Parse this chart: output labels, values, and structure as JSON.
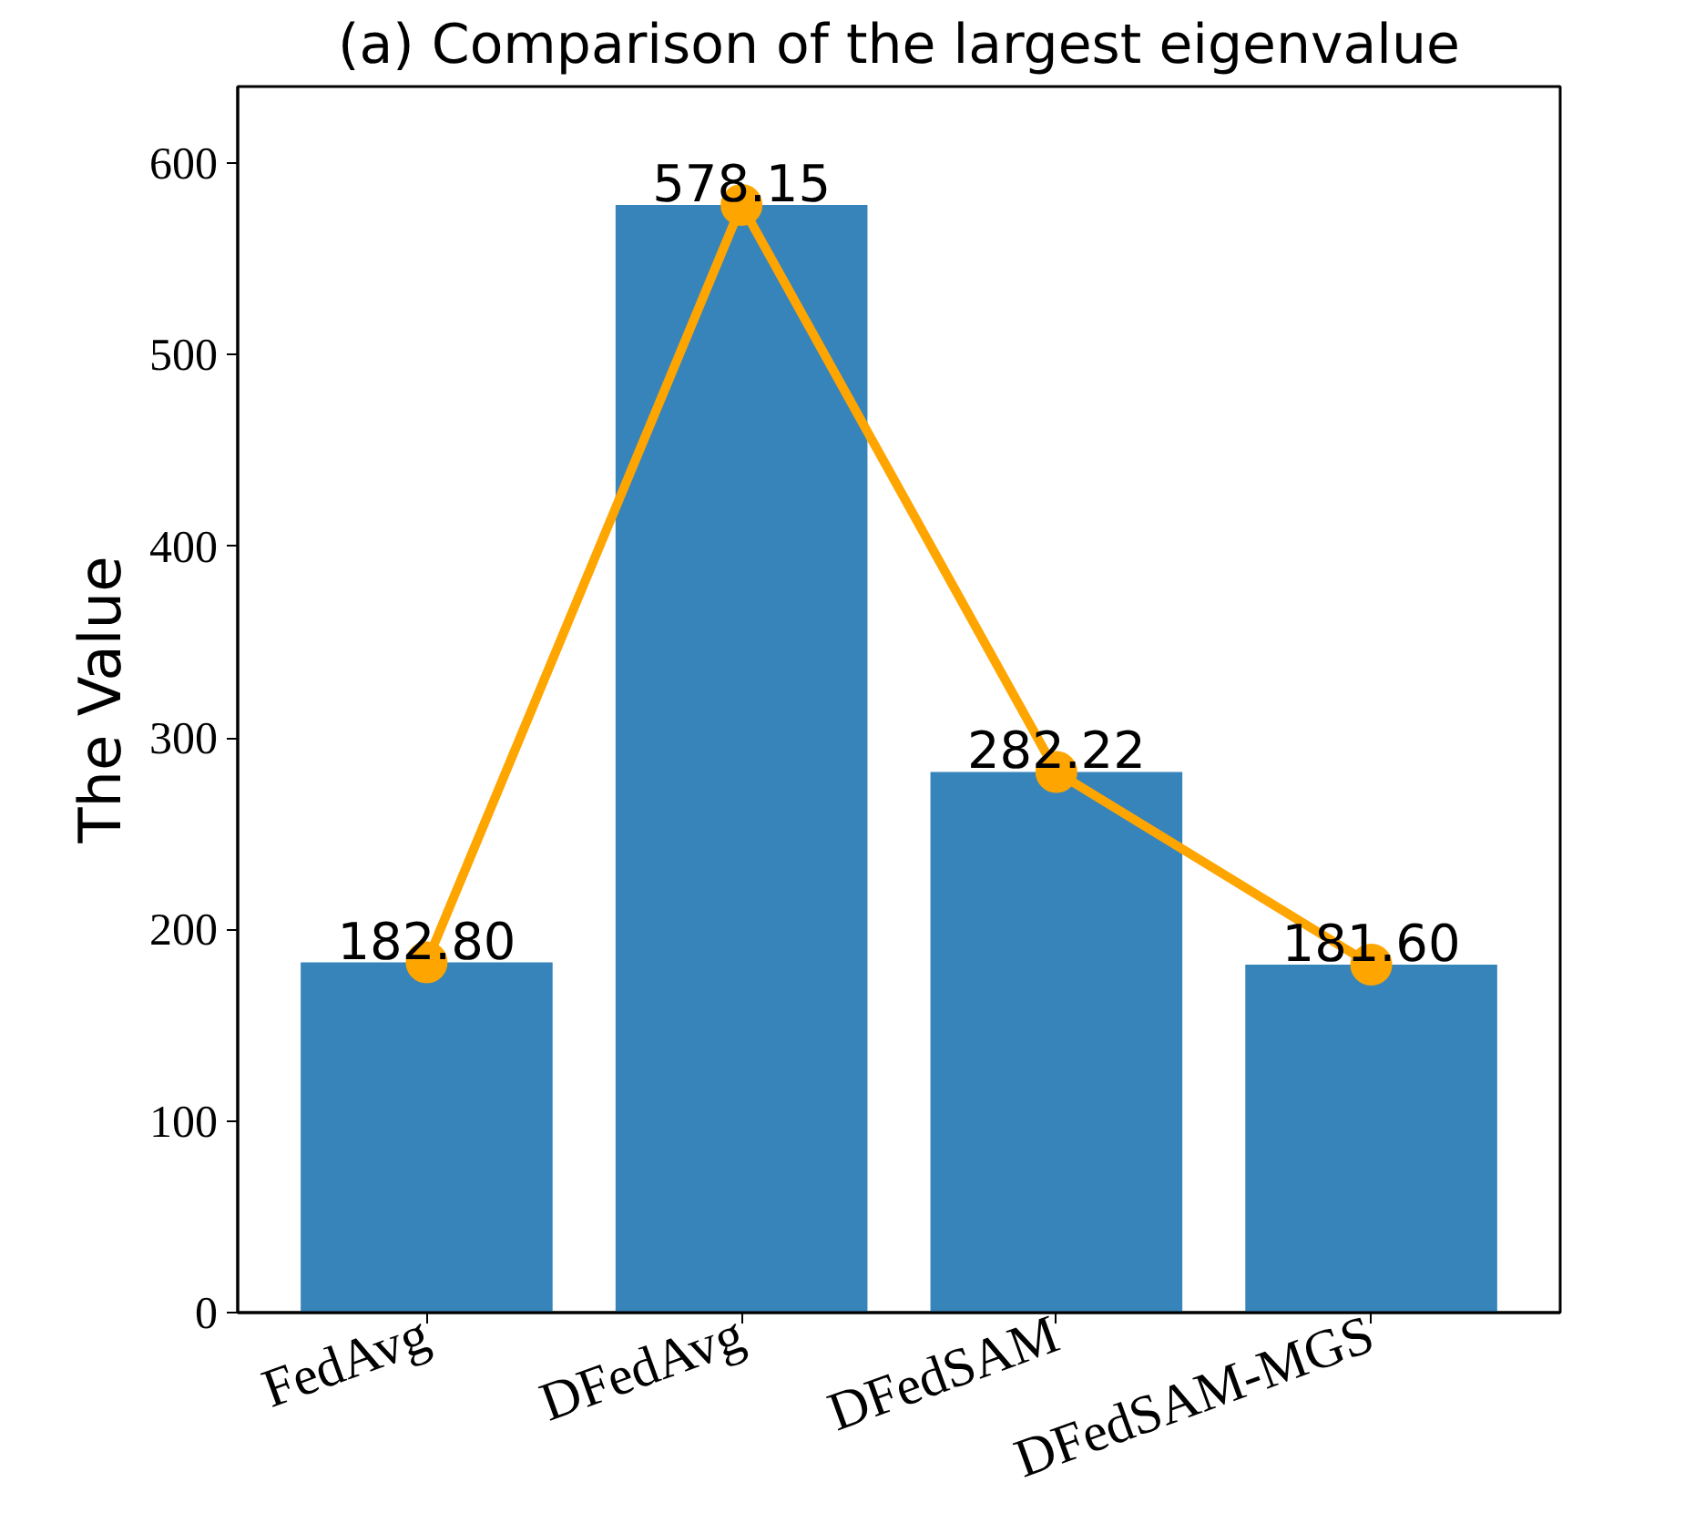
{
  "chart_data": {
    "type": "bar",
    "title": "(a) Comparison of the largest eigenvalue",
    "ylabel": "The Value",
    "categories": [
      "FedAvg",
      "DFedAvg",
      "DFedSAM",
      "DFedSAM-MGS"
    ],
    "series": [
      {
        "color": "#3784bb",
        "values": [
          182.8,
          578.15,
          282.22,
          181.6
        ],
        "value_labels": [
          "182.80",
          "578.15",
          "282.22",
          "181.60"
        ]
      },
      {
        "type": "line",
        "color": "#ffa500",
        "marker": "circle",
        "values": [
          182.8,
          578.15,
          282.22,
          181.6
        ]
      }
    ],
    "ylim": [
      0,
      640
    ],
    "yticks": [
      0,
      100,
      200,
      300,
      400,
      500,
      600
    ],
    "grid": false
  }
}
